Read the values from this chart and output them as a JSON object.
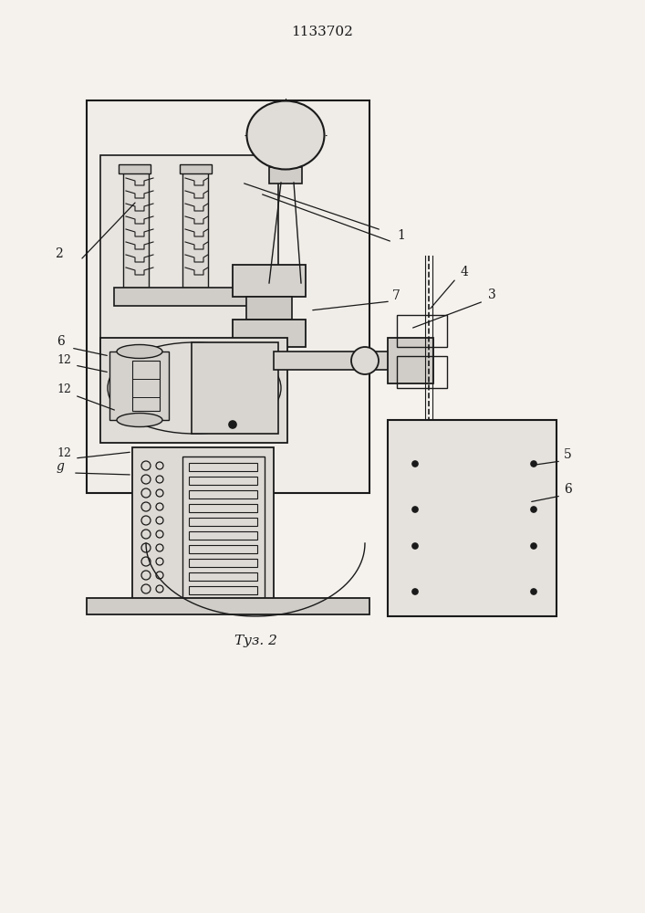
{
  "title": "1133702",
  "caption": "Τуз. 2",
  "bg_color": "#f5f2ee",
  "line_color": "#1a1a1a",
  "fig_width": 7.07,
  "fig_height": 10.0,
  "dpi": 100
}
